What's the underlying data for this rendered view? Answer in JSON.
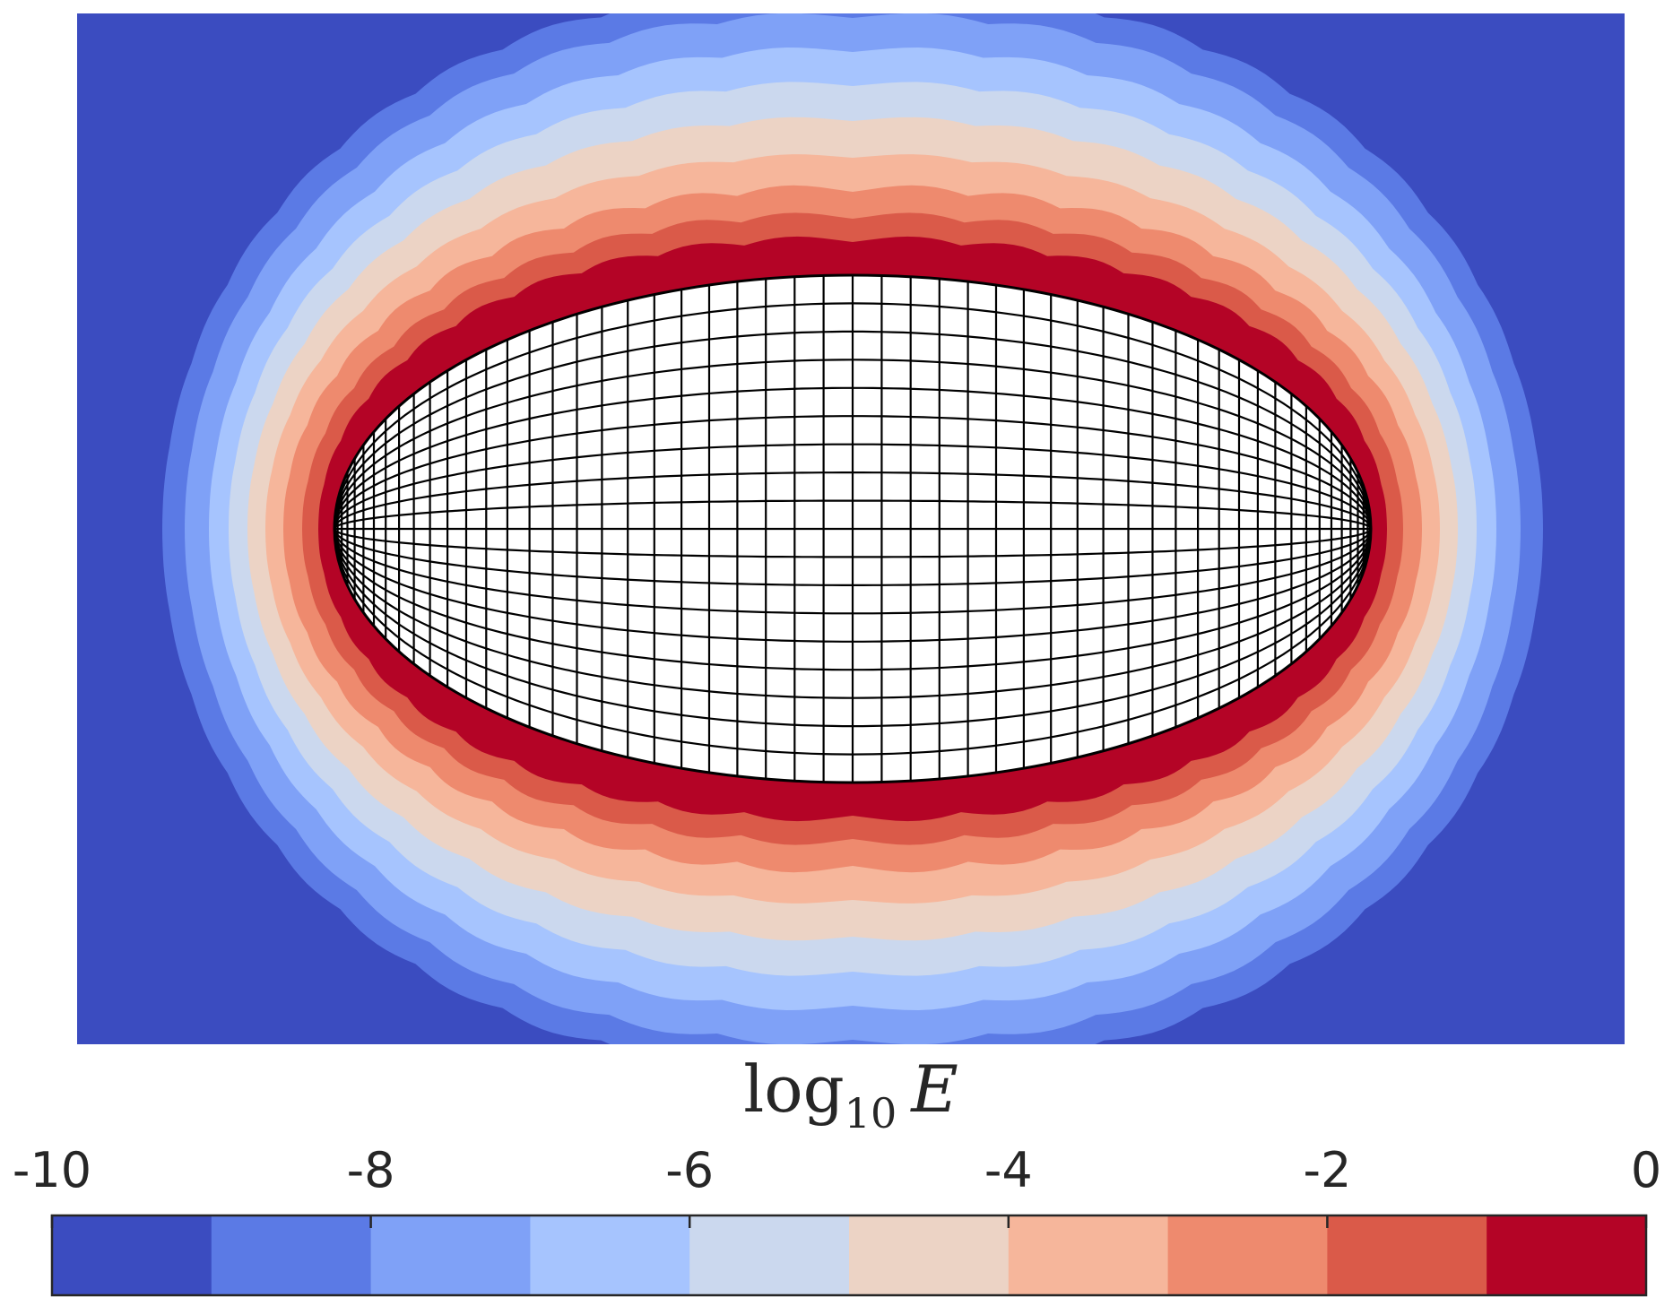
{
  "chart_data": {
    "type": "heatmap",
    "title": "",
    "subtitle": "",
    "grid": false,
    "colorbar": {
      "label": {
        "prefix": "log",
        "subscript": "10",
        "variable": "E"
      },
      "placement": "bottom",
      "range": [
        -10,
        0
      ],
      "levels": [
        -10,
        -9,
        -8,
        -7,
        -6,
        -5,
        -4,
        -3,
        -2,
        -1,
        0
      ],
      "ticks": [
        -10,
        -8,
        -6,
        -4,
        -2,
        0
      ],
      "tick_labels": [
        "-10",
        "-8",
        "-6",
        "-4",
        "-2",
        "0"
      ],
      "colors": [
        "#3b4cc0",
        "#5b7ae5",
        "#7fa1f7",
        "#a6c4fe",
        "#cbd8ee",
        "#ecd3c5",
        "#f6b69b",
        "#ee8a6e",
        "#da5a49",
        "#b40426"
      ]
    },
    "domain_shape": {
      "type": "ellipse",
      "mesh": "curvilinear grid",
      "fill": "#ffffff",
      "grid_color": "#000000"
    }
  }
}
